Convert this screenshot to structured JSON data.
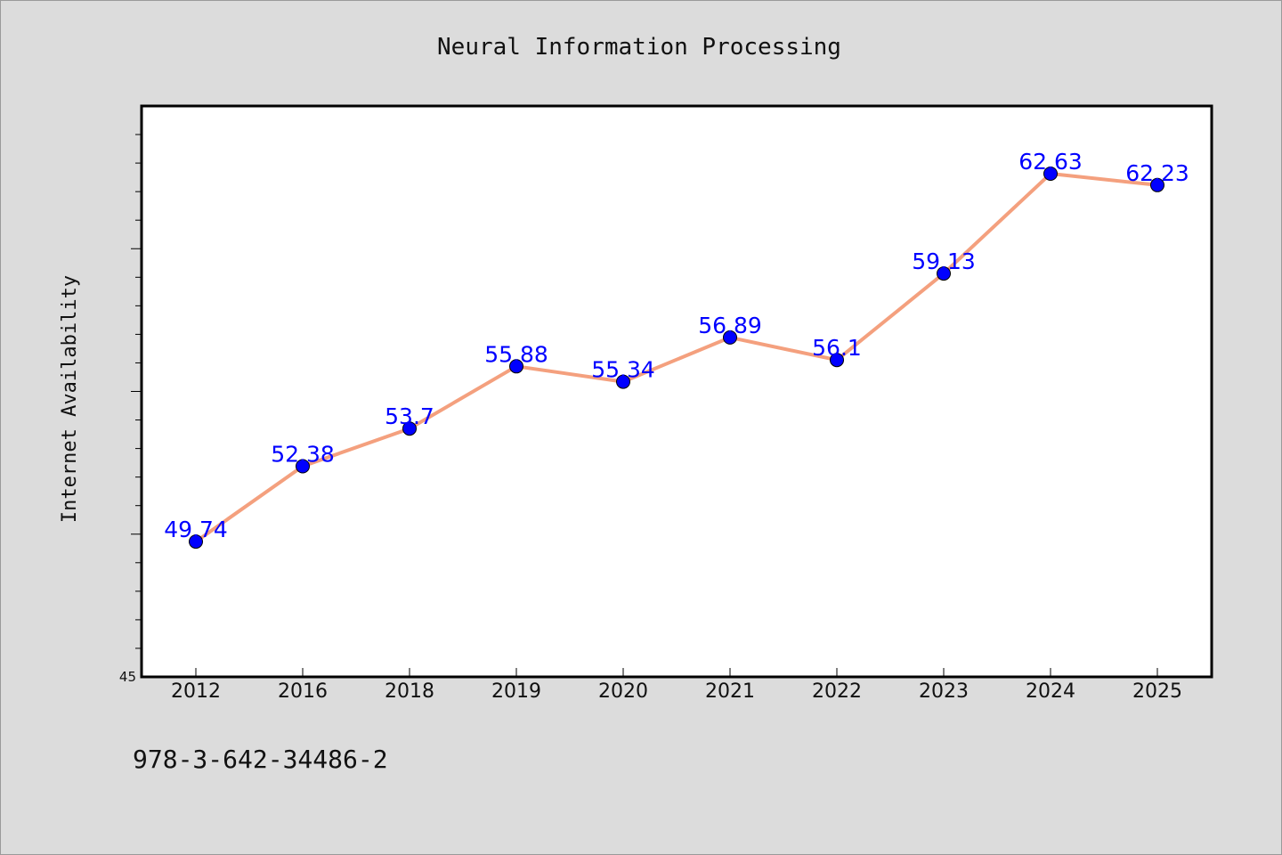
{
  "chart_data": {
    "type": "line",
    "title": "Neural Information Processing",
    "ylabel": "Internet Availability",
    "xlabel": "",
    "categories": [
      "2012",
      "2016",
      "2018",
      "2019",
      "2020",
      "2021",
      "2022",
      "2023",
      "2024",
      "2025"
    ],
    "series": [
      {
        "values": [
          49.74,
          52.38,
          53.7,
          55.88,
          55.34,
          56.89,
          56.1,
          59.13,
          62.63,
          62.23
        ],
        "labels": [
          "49.74",
          "52.38",
          "53.7",
          "55.88",
          "55.34",
          "56.89",
          "56.1",
          "59.13",
          "62.63",
          "62.23"
        ],
        "line_color": "#f4a07e",
        "marker_color": "#0000ff"
      }
    ],
    "ylim": [
      45,
      65
    ],
    "yticks_labeled": [
      "45"
    ],
    "grid": false,
    "legend": "none"
  },
  "footnote": "978-3-642-34486-2",
  "colors": {
    "background": "#dcdcdc",
    "plot_background": "#ffffff",
    "line": "#f4a07e",
    "marker": "#0000ff",
    "data_label": "#0000ff"
  }
}
